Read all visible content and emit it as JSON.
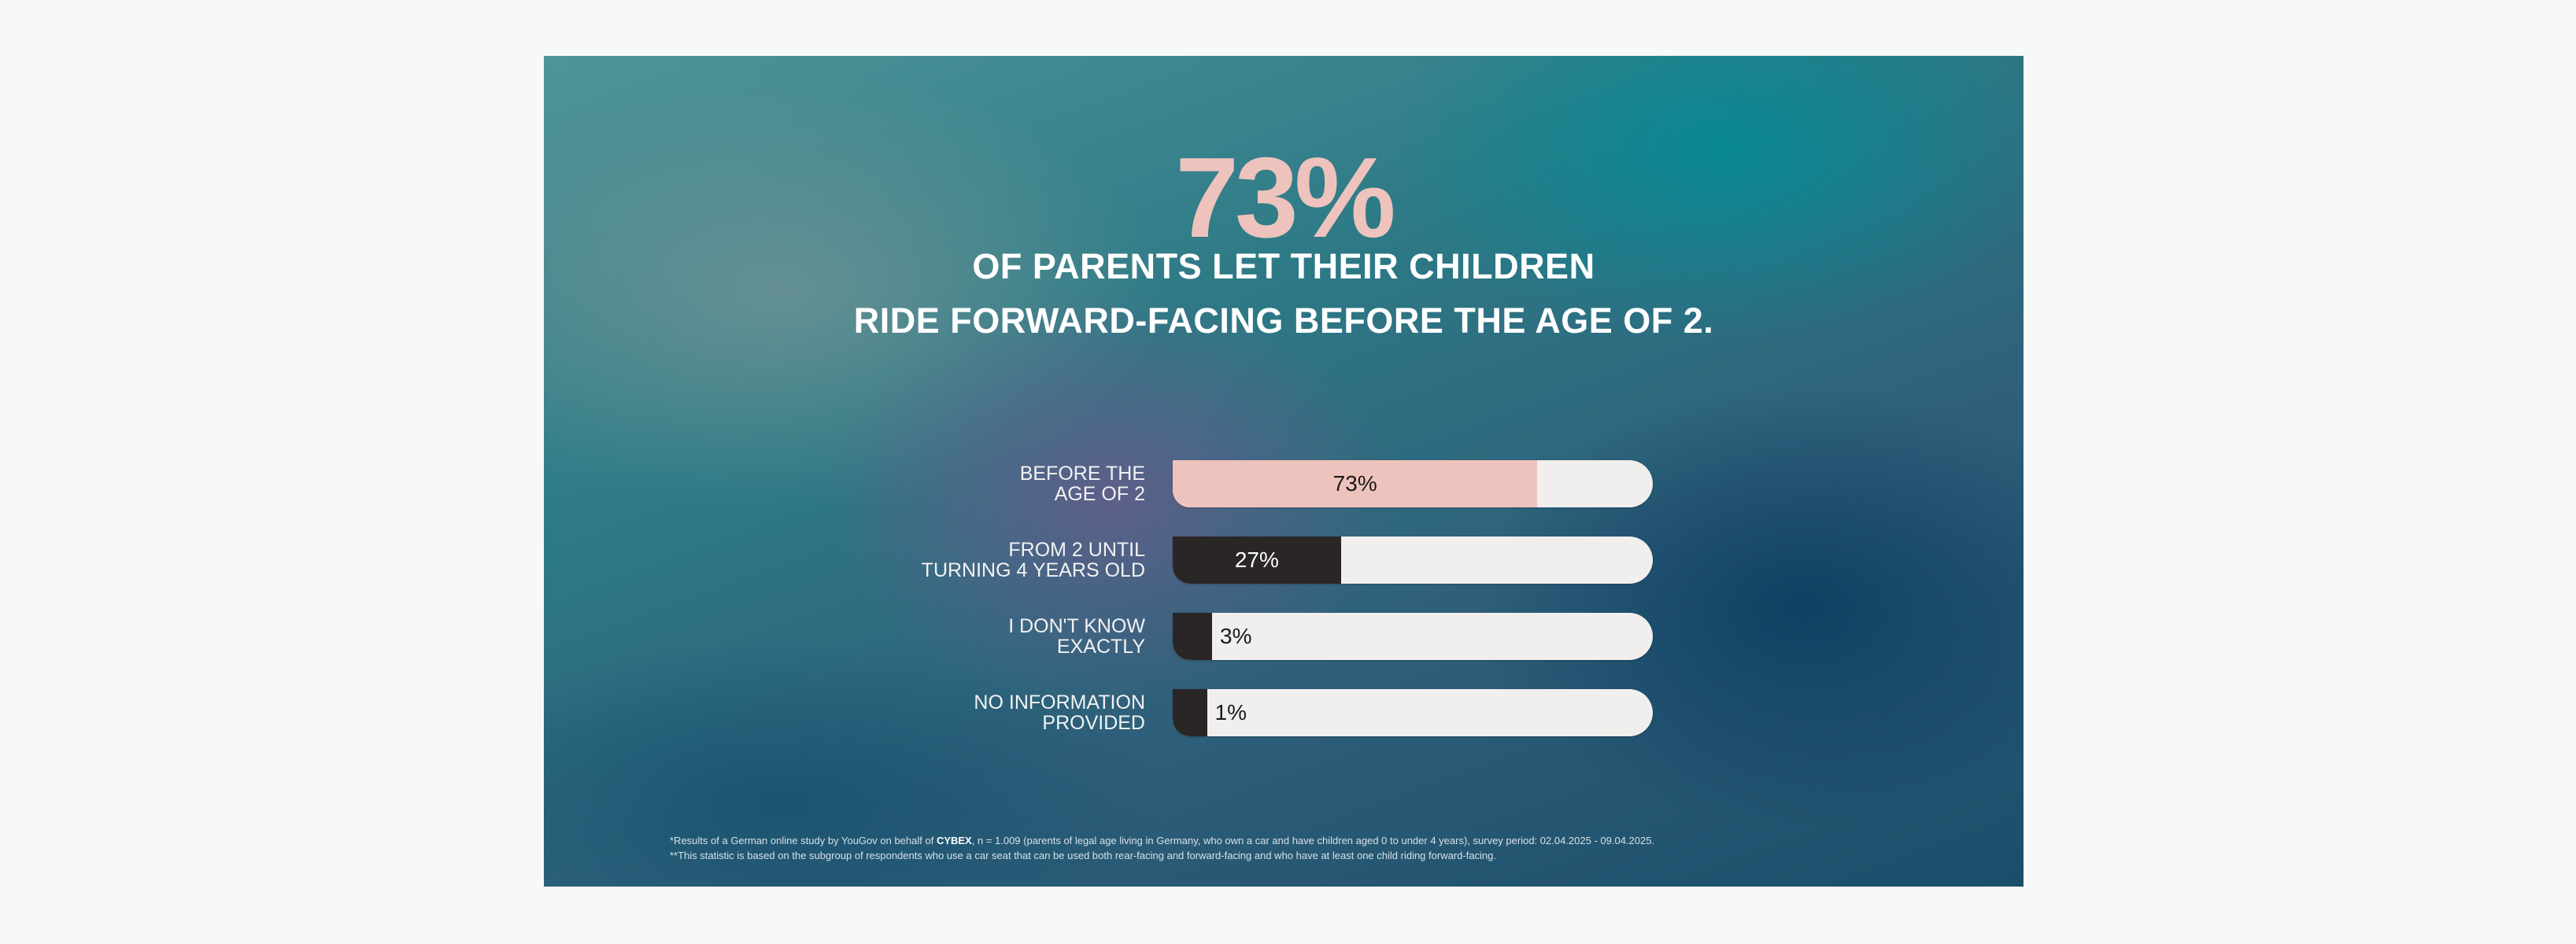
{
  "headline": "73%",
  "subtitle_lines": [
    "OF PARENTS LET THEIR CHILDREN",
    "RIDE FORWARD-FACING BEFORE THE AGE OF 2."
  ],
  "chart_data": {
    "type": "bar",
    "orientation": "horizontal",
    "categories": [
      [
        "BEFORE THE",
        "AGE OF 2"
      ],
      [
        "FROM 2 UNTIL",
        "TURNING 4 YEARS OLD"
      ],
      [
        "I DON'T KNOW",
        "EXACTLY"
      ],
      [
        "NO INFORMATION",
        "PROVIDED"
      ]
    ],
    "values": [
      73,
      27,
      3,
      1
    ],
    "value_labels": [
      "73%",
      "27%",
      "3%",
      "1%"
    ],
    "bar_colors": [
      "#efc3bd",
      "#2a2626",
      "#2a2626",
      "#2a2626"
    ],
    "track_color": "#f0efed",
    "label_colors": [
      "#1a1a1a",
      "#ffffff",
      "#1a1a1a",
      "#1a1a1a"
    ],
    "xlim": [
      0,
      100
    ]
  },
  "footnotes": {
    "line1_pre": "*Results of a German online study by YouGov on behalf of ",
    "line1_bold": "CYBEX",
    "line1_post": ", n = 1.009 (parents of legal age living in Germany, who own a car and have children aged 0 to under 4 years), survey period: 02.04.2025 - 09.04.2025.",
    "line2": "**This statistic is based on the subgroup of respondents who use a car seat that can be used both rear-facing and forward-facing and who have at least one child riding forward-facing."
  },
  "colors": {
    "accent_pink": "#efc3bd",
    "dark_bar": "#2a2626",
    "background_page": "#f7f9f9"
  }
}
